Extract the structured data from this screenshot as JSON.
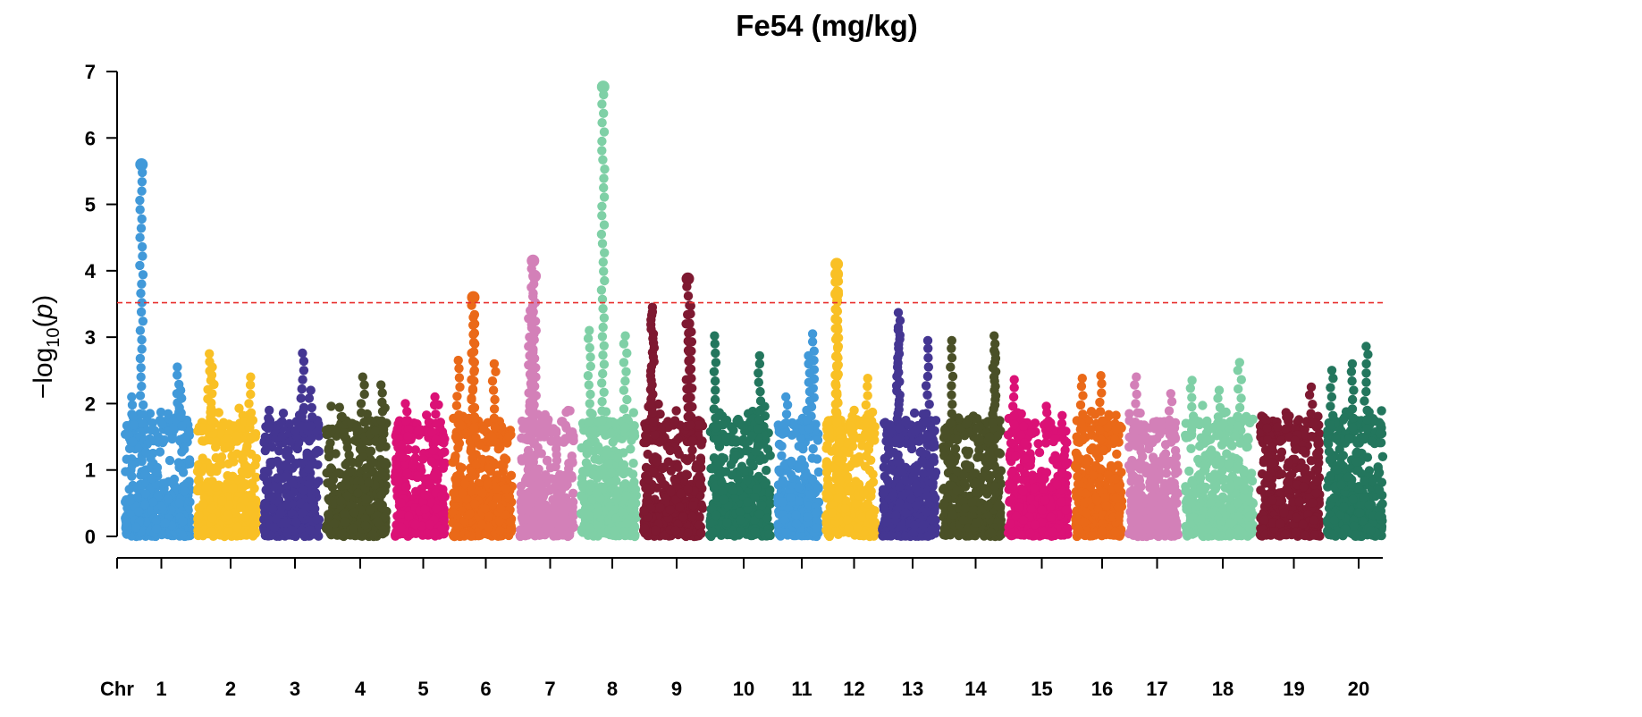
{
  "chart_data": {
    "type": "scatter",
    "title": "Fe54 (mg/kg)",
    "ylabel": "−log10(p)",
    "ylabel_parts": {
      "prefix": "−log",
      "sub": "10",
      "open": "(",
      "var": "p",
      "close": ")"
    },
    "xlabel": "Chr",
    "ylim": [
      0,
      7
    ],
    "yticks": [
      "0",
      "1",
      "2",
      "3",
      "4",
      "5",
      "6",
      "7"
    ],
    "threshold": {
      "value": 3.52,
      "color": "#e8302f",
      "style": "dashed"
    },
    "grid": false,
    "legend": "none",
    "chromosomes": [
      {
        "name": "1",
        "color": "#4199d9",
        "peaks": [
          [
            0.25,
            5.6
          ],
          [
            0.1,
            2.1
          ],
          [
            0.12,
            1.8
          ],
          [
            0.8,
            2.55
          ],
          [
            0.85,
            2.2
          ]
        ]
      },
      {
        "name": "2",
        "color": "#f9c025",
        "peaks": [
          [
            0.2,
            2.75
          ],
          [
            0.25,
            2.55
          ],
          [
            0.9,
            2.4
          ]
        ]
      },
      {
        "name": "3",
        "color": "#443692",
        "peaks": [
          [
            0.7,
            2.76
          ],
          [
            0.85,
            2.2
          ],
          [
            0.1,
            1.9
          ]
        ]
      },
      {
        "name": "4",
        "color": "#4a5027",
        "peaks": [
          [
            0.6,
            2.4
          ],
          [
            0.9,
            2.28
          ]
        ]
      },
      {
        "name": "5",
        "color": "#db1176",
        "peaks": [
          [
            0.22,
            2.0
          ],
          [
            0.8,
            2.1
          ]
        ]
      },
      {
        "name": "6",
        "color": "#ea6918",
        "peaks": [
          [
            0.35,
            3.6
          ],
          [
            0.35,
            3.3
          ],
          [
            0.7,
            2.6
          ],
          [
            0.1,
            2.65
          ]
        ]
      },
      {
        "name": "7",
        "color": "#d380b8",
        "peaks": [
          [
            0.25,
            4.15
          ],
          [
            0.28,
            3.92
          ],
          [
            0.2,
            3.4
          ],
          [
            0.25,
            2.8
          ]
        ]
      },
      {
        "name": "8",
        "color": "#7fd0a6",
        "peaks": [
          [
            0.4,
            6.77
          ],
          [
            0.15,
            3.1
          ],
          [
            0.8,
            3.02
          ]
        ]
      },
      {
        "name": "9",
        "color": "#7e1931",
        "peaks": [
          [
            0.15,
            3.45
          ],
          [
            0.15,
            3.38
          ],
          [
            0.75,
            3.88
          ],
          [
            0.8,
            3.47
          ],
          [
            0.78,
            3.2
          ]
        ]
      },
      {
        "name": "10",
        "color": "#23765d",
        "peaks": [
          [
            0.08,
            3.02
          ],
          [
            0.82,
            2.72
          ]
        ]
      },
      {
        "name": "11",
        "color": "#4199d9",
        "peaks": [
          [
            0.85,
            3.05
          ],
          [
            0.75,
            2.72
          ],
          [
            0.2,
            2.1
          ]
        ]
      },
      {
        "name": "12",
        "color": "#f9c025",
        "peaks": [
          [
            0.22,
            4.1
          ],
          [
            0.22,
            3.95
          ],
          [
            0.22,
            3.65
          ],
          [
            0.85,
            2.38
          ]
        ]
      },
      {
        "name": "13",
        "color": "#443692",
        "peaks": [
          [
            0.3,
            3.37
          ],
          [
            0.3,
            3.15
          ],
          [
            0.85,
            2.95
          ]
        ]
      },
      {
        "name": "14",
        "color": "#4a5027",
        "peaks": [
          [
            0.15,
            2.95
          ],
          [
            0.88,
            3.02
          ],
          [
            0.88,
            2.8
          ]
        ]
      },
      {
        "name": "15",
        "color": "#db1176",
        "peaks": [
          [
            0.1,
            2.36
          ],
          [
            0.9,
            1.82
          ]
        ]
      },
      {
        "name": "16",
        "color": "#ea6918",
        "peaks": [
          [
            0.15,
            2.38
          ],
          [
            0.55,
            2.42
          ]
        ]
      },
      {
        "name": "17",
        "color": "#d380b8",
        "peaks": [
          [
            0.15,
            2.4
          ],
          [
            0.85,
            2.15
          ]
        ]
      },
      {
        "name": "18",
        "color": "#7fd0a6",
        "peaks": [
          [
            0.1,
            2.35
          ],
          [
            0.5,
            2.2
          ],
          [
            0.8,
            2.62
          ]
        ]
      },
      {
        "name": "19",
        "color": "#7e1931",
        "peaks": [
          [
            0.85,
            2.25
          ],
          [
            0.1,
            1.75
          ]
        ]
      },
      {
        "name": "20",
        "color": "#23765d",
        "peaks": [
          [
            0.45,
            2.6
          ],
          [
            0.7,
            2.86
          ],
          [
            0.08,
            2.5
          ]
        ]
      }
    ]
  }
}
